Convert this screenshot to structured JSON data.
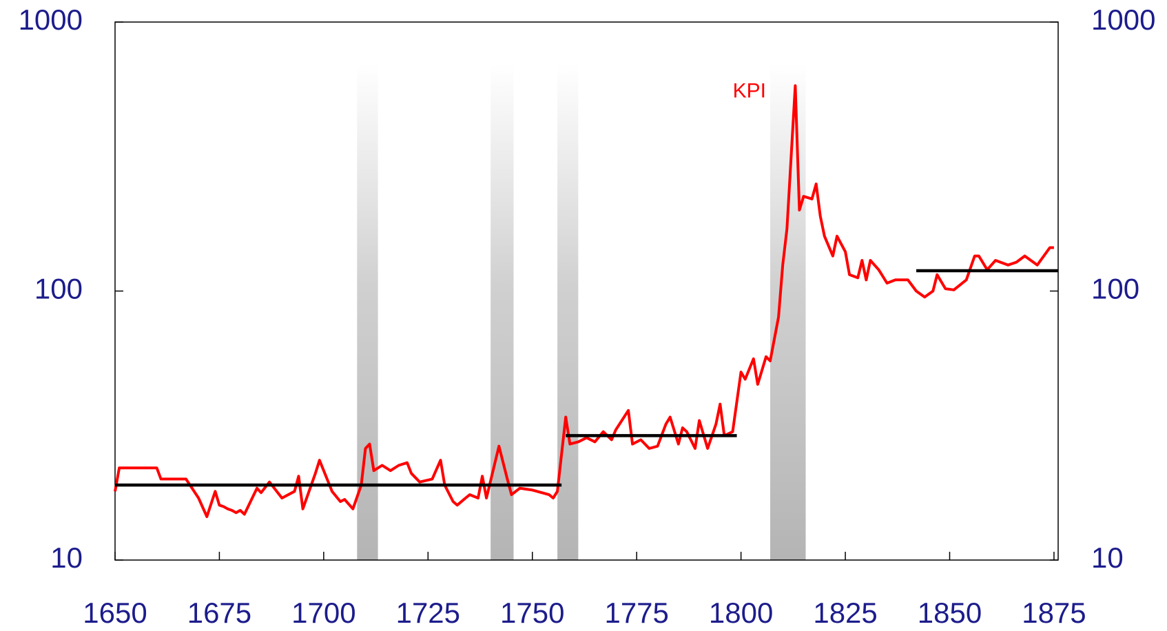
{
  "chart_data": {
    "type": "line",
    "log_scale": true,
    "xlim": [
      1650,
      1876
    ],
    "xticks": [
      1650,
      1675,
      1700,
      1725,
      1750,
      1775,
      1800,
      1825,
      1850,
      1875
    ],
    "ylim": [
      10,
      1000
    ],
    "yticks": [
      10,
      100,
      1000
    ],
    "y2lim": [
      10,
      1000
    ],
    "y2ticks": [
      10,
      100,
      1000
    ],
    "x": [
      1650,
      1651,
      1660,
      1661,
      1667,
      1670,
      1672,
      1674,
      1675,
      1676,
      1677,
      1678,
      1679,
      1680,
      1681,
      1684,
      1685,
      1687,
      1690,
      1693,
      1694,
      1695,
      1698,
      1699,
      1702,
      1704,
      1705,
      1707,
      1709,
      1710,
      1711,
      1712,
      1714,
      1716,
      1718,
      1720,
      1721,
      1723,
      1726,
      1728,
      1729,
      1731,
      1732,
      1734,
      1735,
      1737,
      1738,
      1739,
      1742,
      1744,
      1745,
      1747,
      1750,
      1754,
      1755,
      1756,
      1758,
      1759,
      1761,
      1763,
      1765,
      1767,
      1769,
      1770,
      1773,
      1774,
      1776,
      1778,
      1780,
      1782,
      1783,
      1785,
      1786,
      1787,
      1789,
      1790,
      1792,
      1794,
      1795,
      1796,
      1798,
      1800,
      1801,
      1803,
      1804,
      1806,
      1807,
      1809,
      1810,
      1811,
      1813,
      1814,
      1815,
      1817,
      1818,
      1819,
      1820,
      1822,
      1823,
      1825,
      1826,
      1828,
      1829,
      1830,
      1831,
      1833,
      1835,
      1837,
      1840,
      1842,
      1844,
      1846,
      1847,
      1849,
      1851,
      1854,
      1856,
      1857,
      1859,
      1861,
      1864,
      1866,
      1868,
      1871,
      1874,
      1875
    ],
    "series": [
      {
        "name": "KPI",
        "color": "#ff0000",
        "values": [
          18,
          22,
          22,
          20,
          20,
          17,
          14.5,
          18,
          16,
          15.8,
          15.5,
          15.3,
          15,
          15.3,
          14.8,
          18.5,
          17.8,
          19.5,
          17,
          18,
          20.5,
          15.5,
          21,
          23.5,
          18,
          16.5,
          16.8,
          15.5,
          19,
          26,
          27,
          21.5,
          22.5,
          21.5,
          22.5,
          23,
          21,
          19.5,
          20,
          23.5,
          19,
          16.5,
          16,
          17,
          17.5,
          17,
          20.5,
          17,
          26.5,
          20,
          17.5,
          18.5,
          18.2,
          17.5,
          17,
          18,
          34,
          27,
          27.5,
          28.5,
          27.5,
          30,
          28,
          30.5,
          36,
          27,
          28,
          26,
          26.5,
          32,
          34,
          27,
          31,
          30,
          26,
          33,
          26,
          32,
          38,
          29,
          30,
          50,
          47,
          56,
          45,
          57,
          55,
          80,
          125,
          170,
          580,
          200,
          225,
          220,
          250,
          190,
          160,
          135,
          160,
          140,
          115,
          112,
          130,
          110,
          130,
          120,
          107,
          110,
          110,
          100,
          95,
          100,
          115,
          102,
          101,
          110,
          135,
          135,
          120,
          130,
          125,
          128,
          135,
          125,
          145,
          145
        ]
      }
    ],
    "shaded_periods": [
      [
        1708,
        1713
      ],
      [
        1740,
        1745.5
      ],
      [
        1756,
        1761
      ],
      [
        1807,
        1815.5
      ]
    ],
    "reference_lines": [
      {
        "x": [
          1650,
          1757
        ],
        "value": 19
      },
      {
        "x": [
          1758,
          1799
        ],
        "value": 29
      },
      {
        "x": [
          1842,
          1876
        ],
        "value": 119
      }
    ],
    "annotations": [
      {
        "text": "KPI",
        "x": 1802,
        "y": 550
      }
    ]
  }
}
